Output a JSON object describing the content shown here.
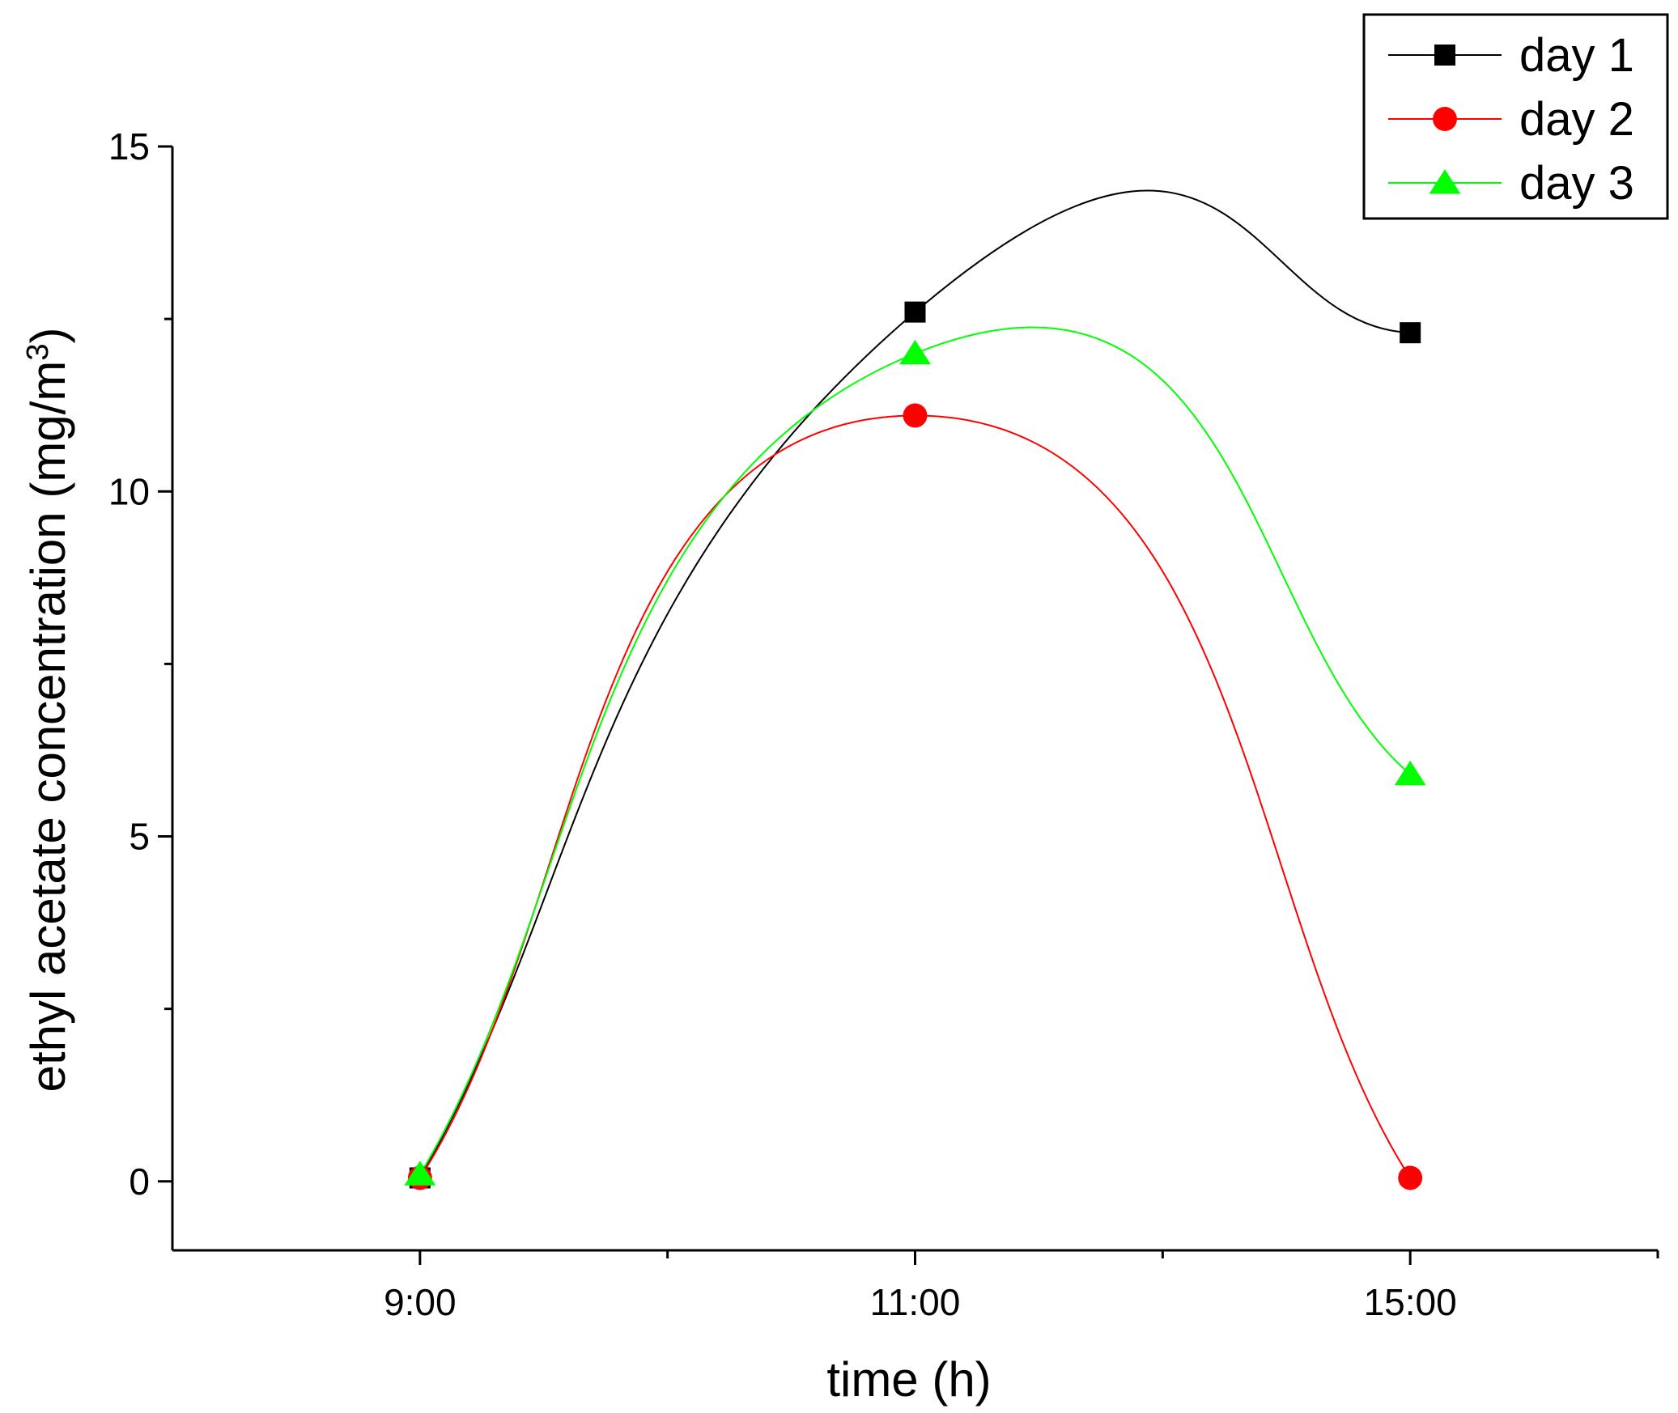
{
  "chart_data": {
    "type": "line",
    "title": "",
    "xlabel": "time (h)",
    "ylabel": "ethyl acetate concentration (mg/m",
    "ylabel_sup": "3",
    "ylabel_close": ")",
    "categories": [
      "9:00",
      "11:00",
      "15:00"
    ],
    "ylim": [
      -1,
      15
    ],
    "yticks": [
      0,
      5,
      10,
      15
    ],
    "smoothed": true,
    "legend_position": "top-right",
    "series": [
      {
        "name": "day 1",
        "values": [
          0.05,
          12.6,
          12.3
        ],
        "color": "#000000",
        "marker": "square"
      },
      {
        "name": "day 2",
        "values": [
          0.05,
          11.1,
          0.05
        ],
        "color": "#ff0000",
        "marker": "circle"
      },
      {
        "name": "day 3",
        "values": [
          0.1,
          12.0,
          5.9
        ],
        "color": "#00ff00",
        "marker": "triangle"
      }
    ]
  }
}
